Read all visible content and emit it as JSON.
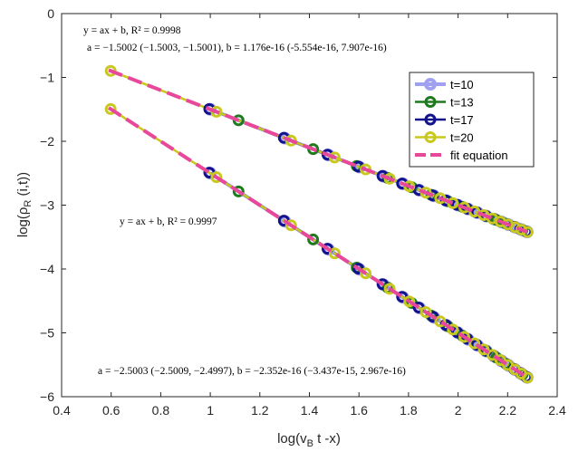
{
  "chart_data": {
    "type": "line",
    "xlabel": "log(v",
    "xlabel_sub": "B",
    "xlabel_rest": " t -x)",
    "ylabel": "log(ρ",
    "ylabel_sub": "R",
    "ylabel_rest": " (i,t))",
    "xlim": [
      0.4,
      2.4
    ],
    "ylim": [
      -6,
      0
    ],
    "xticks": [
      "0.4",
      "0.6",
      "0.8",
      "1",
      "1.2",
      "1.4",
      "1.6",
      "1.8",
      "2",
      "2.2",
      "2.4"
    ],
    "yticks": [
      "0",
      "-1",
      "-2",
      "-3",
      "-4",
      "-5",
      "-6"
    ],
    "grid": false,
    "legend": {
      "position": "top-right",
      "entries": [
        {
          "label": "t=10",
          "color": "#a0a0f0",
          "marker": "circle"
        },
        {
          "label": "t=13",
          "color": "#1f7a1f",
          "marker": "circle"
        },
        {
          "label": "t=17",
          "color": "#12128c",
          "marker": "circle"
        },
        {
          "label": "t=20",
          "color": "#c8c81e",
          "marker": "circle"
        },
        {
          "label": "fit equation",
          "color": "#e8489a",
          "marker": "dashed"
        }
      ]
    },
    "annotations": {
      "upper_eq": "y = ax + b, R² = 0.9998",
      "upper_params": "a = −1.5002 (−1.5003, −1.5001), b = 1.176e-16 (-5.554e-16, 7.907e-16)",
      "lower_eq": "y = ax + b,  R² = 0.9997",
      "lower_params": "a = −2.5003 (−2.5009, −2.4997), b = −2.352e-16 (−3.437e-15, 2.967e-16)"
    },
    "curves": [
      {
        "name": "upper",
        "slope": -1.5002,
        "intercept": 0,
        "fit_x_range": [
          0.59,
          2.28
        ],
        "series": [
          {
            "name": "t=10",
            "x": [
              1.0,
              1.301,
              1.477,
              1.602,
              1.699,
              1.778,
              1.845,
              1.903,
              1.954,
              2.0,
              2.041,
              2.079,
              2.114,
              2.146,
              2.176,
              2.204,
              2.23,
              2.255,
              2.279
            ]
          },
          {
            "name": "t=13",
            "x": [
              1.114,
              1.415,
              1.591,
              1.716,
              1.813,
              1.892,
              1.959,
              2.017,
              2.068,
              2.114,
              2.155,
              2.193,
              2.228,
              2.26,
              2.279
            ]
          },
          {
            "name": "t=17",
            "x": [
              0.996,
              1.297,
              1.473,
              1.598,
              1.695,
              1.774,
              1.841,
              1.899,
              1.95,
              1.996,
              2.037,
              2.075,
              2.11,
              2.142,
              2.172,
              2.2,
              2.226,
              2.251,
              2.275
            ]
          },
          {
            "name": "t=20",
            "x": [
              0.598,
              1.025,
              1.326,
              1.502,
              1.627,
              1.724,
              1.803,
              1.87,
              1.928,
              1.979,
              2.025,
              2.066,
              2.104,
              2.139,
              2.171,
              2.201,
              2.229,
              2.255,
              2.28
            ]
          }
        ]
      },
      {
        "name": "lower",
        "slope": -2.5003,
        "intercept": 0,
        "fit_x_range": [
          0.59,
          2.28
        ],
        "series": [
          {
            "name": "t=10",
            "x": [
              1.0,
              1.301,
              1.477,
              1.602,
              1.699,
              1.778,
              1.845,
              1.903,
              1.954,
              2.0,
              2.041,
              2.079,
              2.114,
              2.146,
              2.176,
              2.204,
              2.23,
              2.255,
              2.279
            ]
          },
          {
            "name": "t=13",
            "x": [
              1.114,
              1.415,
              1.591,
              1.716,
              1.813,
              1.892,
              1.959,
              2.017,
              2.068,
              2.114,
              2.155,
              2.193,
              2.228,
              2.26,
              2.279
            ]
          },
          {
            "name": "t=17",
            "x": [
              0.996,
              1.297,
              1.473,
              1.598,
              1.695,
              1.774,
              1.841,
              1.899,
              1.95,
              1.996,
              2.037,
              2.075,
              2.11,
              2.142,
              2.172,
              2.2,
              2.226,
              2.251,
              2.275
            ]
          },
          {
            "name": "t=20",
            "x": [
              0.598,
              1.025,
              1.326,
              1.502,
              1.627,
              1.724,
              1.803,
              1.87,
              1.928,
              1.979,
              2.025,
              2.066,
              2.104,
              2.139,
              2.171,
              2.201,
              2.229,
              2.255,
              2.28
            ]
          }
        ]
      }
    ]
  }
}
